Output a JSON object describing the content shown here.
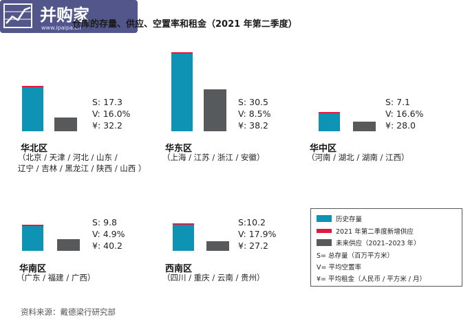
{
  "logo": {
    "brand": "并购家",
    "url": "www.ipaipa.cn"
  },
  "title": "仓库的存量、供应、空置率和租金（2021 年第二季度）",
  "chart_data": {
    "type": "bar",
    "colors": {
      "historical": "#0e93b4",
      "new_supply": "#e01a3c",
      "future": "#58595b"
    },
    "regions": [
      {
        "name": "华北区",
        "provinces": [
          "（北京 / 天津 / 河北 / 山东 /",
          "辽宁 / 吉林 / 黑龙江 / 陕西 / 山西 ）"
        ],
        "historical": 17.3,
        "new_supply": 0.5,
        "future": 5.3,
        "stats": [
          "S: 17.3",
          "V:  16.0%",
          "¥:  32.2"
        ]
      },
      {
        "name": "华东区",
        "provinces": [
          "（上海 / 江苏 / 浙江 / 安徽）"
        ],
        "historical": 30.5,
        "new_supply": 0.6,
        "future": 16.6,
        "stats": [
          "S: 30.5",
          "V: 8.5%",
          "¥: 38.2"
        ]
      },
      {
        "name": "华中区",
        "provinces": [
          "（河南 / 湖北 / 湖南 / 江西）"
        ],
        "historical": 7.1,
        "new_supply": 0.3,
        "future": 3.8,
        "stats": [
          "S: 7.1",
          "V: 16.6%",
          "¥: 28.0"
        ]
      },
      {
        "name": "华南区",
        "provinces": [
          "（广东 / 福建 / 广西）"
        ],
        "historical": 9.8,
        "new_supply": 0.2,
        "future": 4.5,
        "stats": [
          "S:  9.8",
          "V:  4.9%",
          "¥:  40.2"
        ]
      },
      {
        "name": "西南区",
        "provinces": [
          "（四川 / 重庆 / 云南 / 贵州）"
        ],
        "historical": 10.2,
        "new_supply": 0.2,
        "future": 3.8,
        "stats": [
          "S:10.2",
          "V: 17.9%",
          "¥: 27.2"
        ]
      }
    ]
  },
  "legend": {
    "items": [
      {
        "label": "历史存量",
        "color": "#0e93b4"
      },
      {
        "label": "2021 年第二季度新增供应",
        "color": "#e01a3c"
      },
      {
        "label": "未来供应（2021–2023 年）",
        "color": "#58595b"
      }
    ],
    "notes": [
      "S= 总存量（百万平方米）",
      "V= 平均空置率",
      "¥= 平均租金（人民币 / 平方米 / 月）"
    ]
  },
  "source": "资料来源：戴德梁行研究部"
}
